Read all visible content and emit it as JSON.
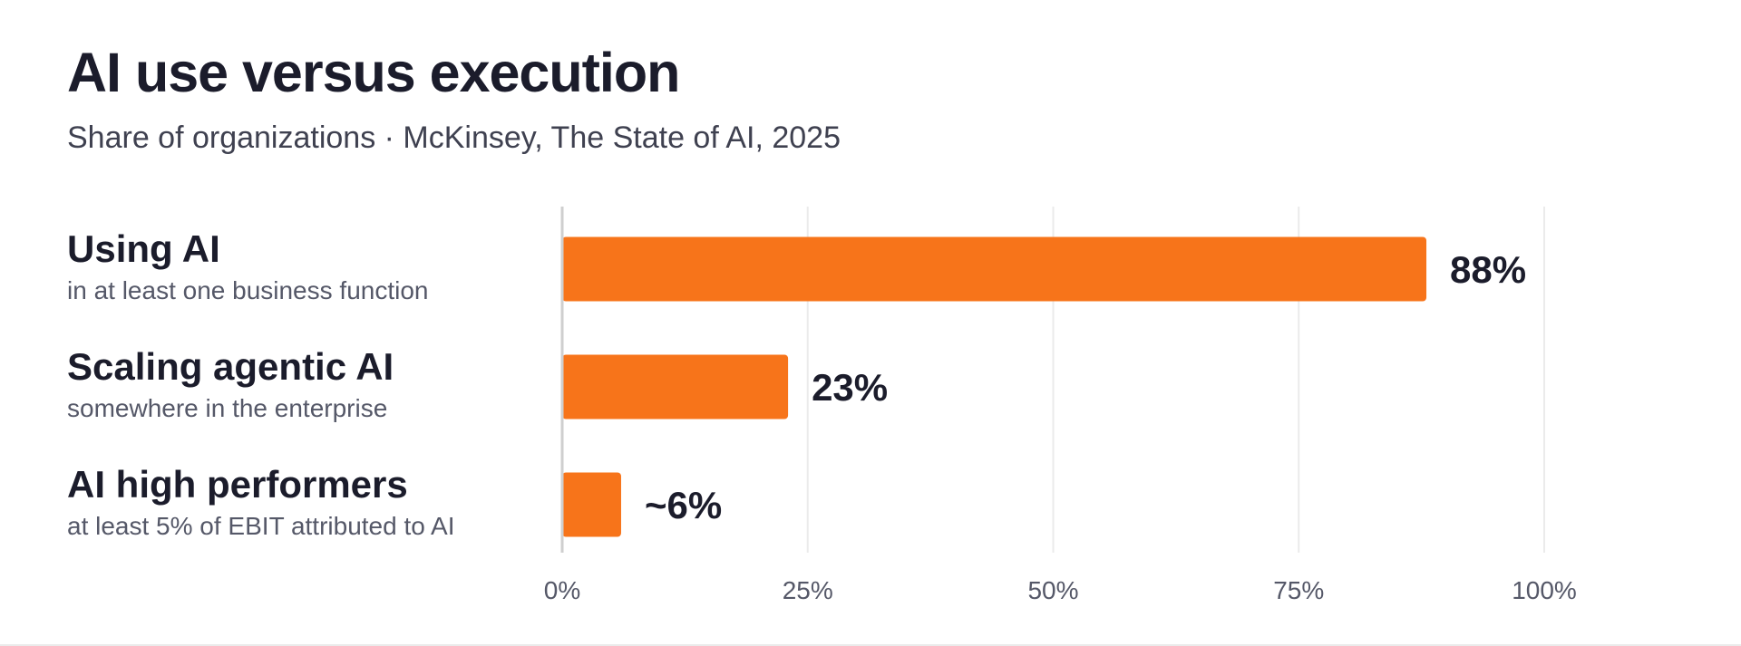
{
  "header": {
    "title": "AI use versus execution",
    "subtitle": "Share of organizations · McKinsey, The State of AI, 2025"
  },
  "chart_data": {
    "type": "bar",
    "orientation": "horizontal",
    "categories": [
      "Using AI",
      "Scaling agentic AI",
      "AI high performers"
    ],
    "descriptions": [
      "in at least one business function",
      "somewhere in the enterprise",
      "at least 5% of EBIT attributed to AI"
    ],
    "values": [
      88,
      23,
      6
    ],
    "data_labels": [
      "88%",
      "23%",
      "~6%"
    ],
    "xlim": [
      0,
      100
    ],
    "xticks": [
      0,
      25,
      50,
      75,
      100
    ],
    "xtick_labels": [
      "0%",
      "25%",
      "50%",
      "75%",
      "100%"
    ],
    "grid": true,
    "colors": {
      "bar": "#f7741a",
      "gridline": "#ebebeb",
      "axis": "#cfcfcf",
      "label": "#1b1c2b",
      "tick": "#555868"
    }
  }
}
